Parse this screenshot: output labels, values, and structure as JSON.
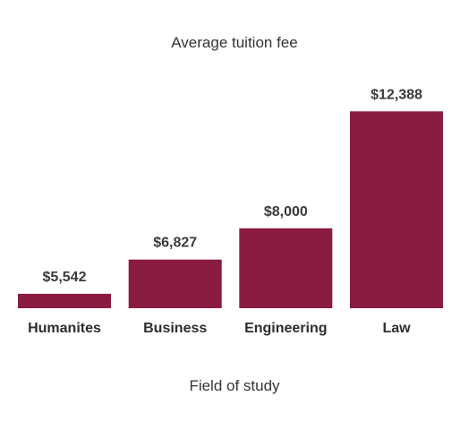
{
  "chart_data": {
    "type": "bar",
    "title": "Average tuition fee",
    "xlabel": "Field of study",
    "ylabel": "",
    "categories": [
      "Humanites",
      "Business",
      "Engineering",
      "Law"
    ],
    "values": [
      5542,
      6827,
      8000,
      12388
    ],
    "value_labels": [
      "$5,542",
      "$6,827",
      "$8,000",
      "$12,388"
    ],
    "ylim": [
      5000,
      12500
    ],
    "grid": false,
    "legend": "none",
    "bar_color": "#8a1c42"
  }
}
